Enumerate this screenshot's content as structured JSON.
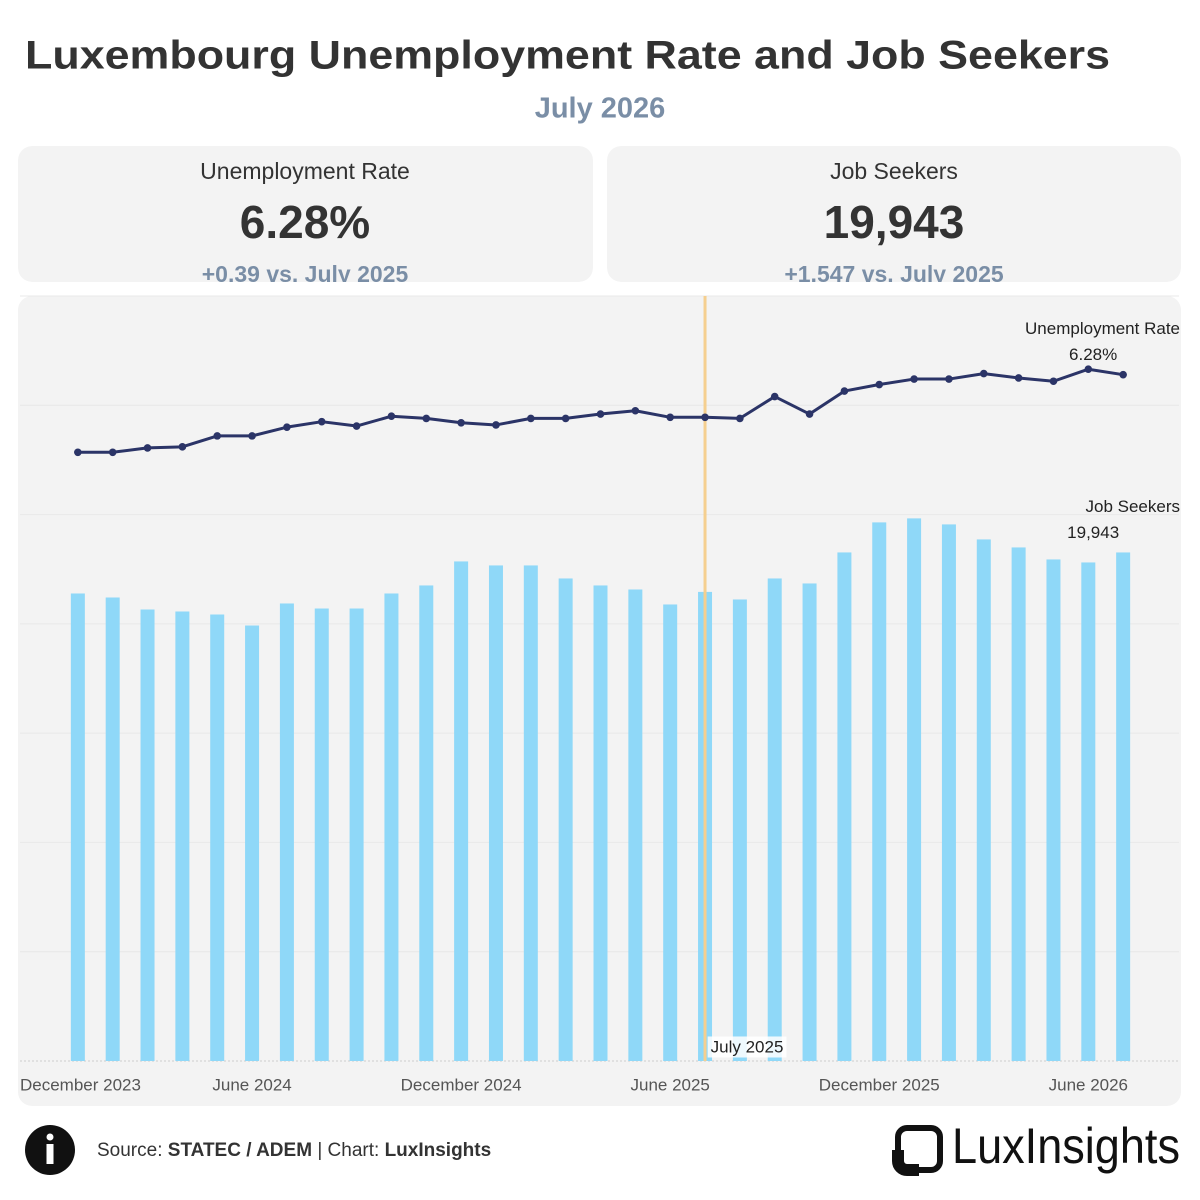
{
  "header": {
    "title": "Luxembourg Unemployment Rate and Job Seekers",
    "subtitle": "July 2026"
  },
  "kpis": [
    {
      "label": "Unemployment Rate",
      "value": "6.28%",
      "change": "+0.39 vs. July 2025"
    },
    {
      "label": "Job Seekers",
      "value": "19,943",
      "change": "+1,547 vs. July 2025"
    }
  ],
  "chart_data": {
    "type": "bar_line",
    "x": [
      "2024-01",
      "2024-02",
      "2024-03",
      "2024-04",
      "2024-05",
      "2024-06",
      "2024-07",
      "2024-08",
      "2024-09",
      "2024-10",
      "2024-11",
      "2024-12",
      "2025-01",
      "2025-02",
      "2025-03",
      "2025-04",
      "2025-05",
      "2025-06",
      "2025-07",
      "2025-08",
      "2025-09",
      "2025-10",
      "2025-11",
      "2025-12",
      "2026-01",
      "2026-02",
      "2026-03",
      "2026-04",
      "2026-05",
      "2026-06",
      "2026-07"
    ],
    "xlim": [
      "2023-12",
      "2026-08"
    ],
    "xticks": [
      {
        "value": "2023-12",
        "label": "December 2023"
      },
      {
        "value": "2024-06",
        "label": "June 2024"
      },
      {
        "value": "2024-12",
        "label": "December 2024"
      },
      {
        "value": "2025-06",
        "label": "June 2025"
      },
      {
        "value": "2025-12",
        "label": "December 2025"
      },
      {
        "value": "2026-06",
        "label": "June 2026"
      }
    ],
    "ylim": [
      0,
      30000
    ],
    "y2lim": [
      0,
      7
    ],
    "y2ticks": [
      0,
      1,
      2,
      3,
      4,
      5,
      6,
      7
    ],
    "tick_labels": false,
    "grid": true,
    "series": [
      {
        "name": "Job Seekers",
        "type": "bar",
        "color": "#8fd8f8",
        "values": [
          18334,
          18177,
          17706,
          17628,
          17510,
          17078,
          17942,
          17745,
          17745,
          18334,
          18649,
          19591,
          19434,
          19434,
          18923,
          18649,
          18491,
          17903,
          18396,
          18099,
          18923,
          18727,
          19944,
          21122,
          21279,
          21043,
          20454,
          20140,
          19669,
          19551,
          19943
        ]
      },
      {
        "name": "Unemployment Rate",
        "type": "line",
        "axis": "y2",
        "color": "#2b3467",
        "values": [
          5.57,
          5.57,
          5.61,
          5.62,
          5.72,
          5.72,
          5.8,
          5.85,
          5.81,
          5.9,
          5.88,
          5.84,
          5.82,
          5.88,
          5.88,
          5.92,
          5.95,
          5.89,
          5.89,
          5.88,
          6.08,
          5.92,
          6.13,
          6.19,
          6.24,
          6.24,
          6.29,
          6.25,
          6.22,
          6.33,
          6.28
        ]
      }
    ],
    "reference_line": {
      "x": "2025-07",
      "label": "July 2025",
      "color": "#f5cf8f"
    },
    "annotations": [
      {
        "series": 1,
        "name": "Unemployment Rate",
        "value_label": "6.28%"
      },
      {
        "series": 0,
        "name": "Job Seekers",
        "value_label": "19,943"
      }
    ]
  },
  "footer": {
    "source_label": "Source:",
    "source": "STATEC / ADEM",
    "chart_label": "| Chart:",
    "chart": "LuxInsights"
  },
  "logo": {
    "text": "LuxInsights"
  }
}
